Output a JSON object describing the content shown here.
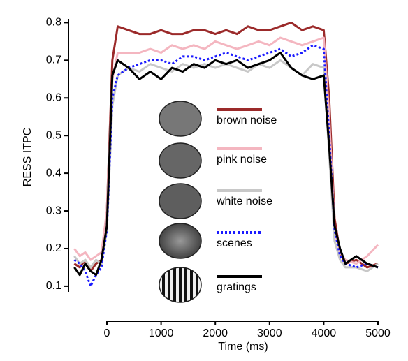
{
  "chart_data": {
    "type": "line",
    "xlabel": "Time (ms)",
    "ylabel": "RESS ITPC",
    "x": [
      -600,
      -500,
      -400,
      -300,
      -200,
      -100,
      0,
      100,
      200,
      400,
      600,
      800,
      1000,
      1200,
      1400,
      1600,
      1800,
      2000,
      2200,
      2400,
      2600,
      2800,
      3000,
      3200,
      3400,
      3600,
      3800,
      4000,
      4100,
      4200,
      4300,
      4400,
      4600,
      4800,
      5000
    ],
    "series": [
      {
        "name": "brown noise",
        "color": "#9b2a2a",
        "dash": "solid",
        "values": [
          0.16,
          0.15,
          0.17,
          0.14,
          0.16,
          0.17,
          0.3,
          0.7,
          0.79,
          0.78,
          0.77,
          0.77,
          0.78,
          0.77,
          0.77,
          0.78,
          0.78,
          0.77,
          0.78,
          0.77,
          0.79,
          0.78,
          0.78,
          0.79,
          0.8,
          0.78,
          0.79,
          0.78,
          0.6,
          0.28,
          0.19,
          0.16,
          0.17,
          0.15,
          0.16
        ]
      },
      {
        "name": "pink noise",
        "color": "#f4b6c0",
        "dash": "solid",
        "values": [
          0.2,
          0.18,
          0.19,
          0.17,
          0.18,
          0.19,
          0.3,
          0.65,
          0.72,
          0.72,
          0.72,
          0.73,
          0.72,
          0.74,
          0.73,
          0.74,
          0.73,
          0.75,
          0.74,
          0.73,
          0.74,
          0.75,
          0.74,
          0.76,
          0.75,
          0.74,
          0.75,
          0.76,
          0.55,
          0.25,
          0.19,
          0.17,
          0.16,
          0.18,
          0.21
        ]
      },
      {
        "name": "white noise",
        "color": "#c8c8c8",
        "dash": "solid",
        "values": [
          0.18,
          0.16,
          0.17,
          0.15,
          0.17,
          0.16,
          0.25,
          0.58,
          0.66,
          0.68,
          0.67,
          0.69,
          0.68,
          0.67,
          0.69,
          0.68,
          0.69,
          0.68,
          0.69,
          0.68,
          0.67,
          0.69,
          0.68,
          0.7,
          0.68,
          0.66,
          0.69,
          0.68,
          0.45,
          0.22,
          0.17,
          0.15,
          0.15,
          0.14,
          0.16
        ]
      },
      {
        "name": "scenes",
        "color": "#1a1aff",
        "dash": "dotted",
        "values": [
          0.17,
          0.16,
          0.14,
          0.1,
          0.13,
          0.15,
          0.25,
          0.6,
          0.66,
          0.68,
          0.69,
          0.7,
          0.7,
          0.69,
          0.71,
          0.71,
          0.7,
          0.71,
          0.72,
          0.71,
          0.7,
          0.71,
          0.72,
          0.73,
          0.71,
          0.72,
          0.74,
          0.73,
          0.5,
          0.25,
          0.18,
          0.16,
          0.15,
          0.16,
          0.15
        ]
      },
      {
        "name": "gratings",
        "color": "#000000",
        "dash": "solid",
        "values": [
          0.15,
          0.13,
          0.16,
          0.14,
          0.13,
          0.17,
          0.26,
          0.66,
          0.7,
          0.68,
          0.65,
          0.67,
          0.65,
          0.68,
          0.67,
          0.69,
          0.68,
          0.7,
          0.69,
          0.7,
          0.68,
          0.69,
          0.7,
          0.72,
          0.68,
          0.66,
          0.65,
          0.66,
          0.47,
          0.26,
          0.2,
          0.16,
          0.18,
          0.16,
          0.15
        ]
      }
    ],
    "xlim": [
      0,
      5000
    ],
    "xticks": [
      0,
      1000,
      2000,
      3000,
      4000,
      5000
    ],
    "ylim": [
      0.085,
      0.81
    ],
    "yticks": [
      0.1,
      0.2,
      0.3,
      0.4,
      0.5,
      0.6,
      0.7,
      0.8
    ],
    "grid": false
  }
}
